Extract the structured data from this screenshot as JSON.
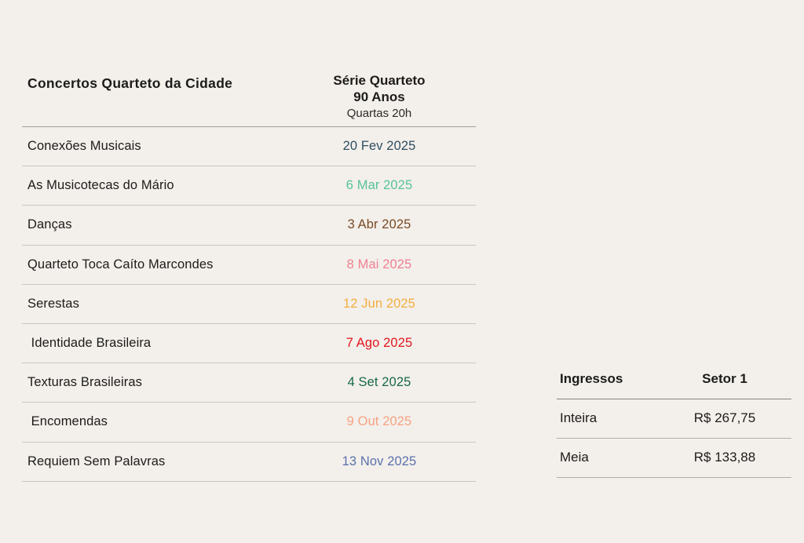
{
  "page": {
    "background_color": "#f3efeb",
    "text_color": "#1c1c1a"
  },
  "concerts_table": {
    "title": "Concertos Quarteto da Cidade",
    "series_header": {
      "line1": "Série Quarteto",
      "line2": "90 Anos",
      "line3": "Quartas 20h"
    },
    "rows": [
      {
        "name": "Conexões Musicais",
        "date": "20 Fev 2025",
        "date_color": "#2e4e60"
      },
      {
        "name": "As Musicotecas do Mário",
        "date": "6 Mar 2025",
        "date_color": "#57c497"
      },
      {
        "name": "Danças",
        "date": "3 Abr 2025",
        "date_color": "#7b4a24"
      },
      {
        "name": "Quarteto Toca Caíto Marcondes",
        "date": "8 Mai 2025",
        "date_color": "#ef8093"
      },
      {
        "name": "Serestas",
        "date": "12 Jun 2025",
        "date_color": "#f2ae3d"
      },
      {
        "name": " Identidade Brasileira",
        "date": "7 Ago 2025",
        "date_color": "#e1161c"
      },
      {
        "name": "Texturas Brasileiras",
        "date": "4 Set 2025",
        "date_color": "#176a45"
      },
      {
        "name": " Encomendas",
        "date": "9 Out 2025",
        "date_color": "#f5a383"
      },
      {
        "name": "Requiem Sem Palavras",
        "date": "13 Nov 2025",
        "date_color": "#5a71ab"
      }
    ]
  },
  "tickets_table": {
    "col1_header": "Ingressos",
    "col2_header": "Setor 1",
    "rows": [
      {
        "type": "Inteira",
        "price": "R$ 267,75"
      },
      {
        "type": "Meia",
        "price": "R$ 133,88"
      }
    ]
  }
}
